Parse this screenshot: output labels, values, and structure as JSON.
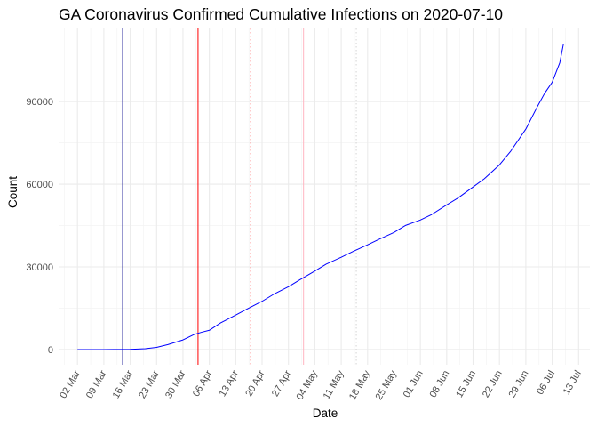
{
  "chart_data": {
    "type": "line",
    "title": "GA Coronavirus Confirmed Cumulative Infections on 2020-07-10",
    "xlabel": "Date",
    "ylabel": "Count",
    "x_tick_labels": [
      "02 Mar",
      "09 Mar",
      "16 Mar",
      "23 Mar",
      "30 Mar",
      "06 Apr",
      "13 Apr",
      "20 Apr",
      "27 Apr",
      "04 May",
      "11 May",
      "18 May",
      "25 May",
      "01 Jun",
      "08 Jun",
      "15 Jun",
      "22 Jun",
      "29 Jun",
      "06 Jul",
      "13 Jul"
    ],
    "x_tick_dates": [
      "2020-03-02",
      "2020-03-09",
      "2020-03-16",
      "2020-03-23",
      "2020-03-30",
      "2020-04-06",
      "2020-04-13",
      "2020-04-20",
      "2020-04-27",
      "2020-05-04",
      "2020-05-11",
      "2020-05-18",
      "2020-05-25",
      "2020-06-01",
      "2020-06-08",
      "2020-06-15",
      "2020-06-22",
      "2020-06-29",
      "2020-07-06",
      "2020-07-13"
    ],
    "y_tick_labels": [
      "0",
      "30000",
      "60000",
      "90000"
    ],
    "y_ticks": [
      0,
      30000,
      60000,
      90000
    ],
    "xlim": [
      "2020-02-26",
      "2020-07-16"
    ],
    "ylim": [
      -5500,
      116500
    ],
    "grid": true,
    "reference_lines": [
      {
        "date": "2020-03-14",
        "color": "#00008b",
        "style": "solid"
      },
      {
        "date": "2020-04-03",
        "color": "#ff0000",
        "style": "solid"
      },
      {
        "date": "2020-04-17",
        "color": "#ff0000",
        "style": "dotted"
      },
      {
        "date": "2020-05-01",
        "color": "#ffb6c1",
        "style": "solid"
      },
      {
        "date": "2020-05-15",
        "color": "#d3d3d3",
        "style": "dotted"
      }
    ],
    "series": [
      {
        "color": "#0000ff",
        "x": [
          "2020-03-02",
          "2020-03-09",
          "2020-03-16",
          "2020-03-20",
          "2020-03-23",
          "2020-03-26",
          "2020-03-30",
          "2020-04-02",
          "2020-04-04",
          "2020-04-06",
          "2020-04-09",
          "2020-04-13",
          "2020-04-16",
          "2020-04-20",
          "2020-04-23",
          "2020-04-27",
          "2020-04-30",
          "2020-05-04",
          "2020-05-07",
          "2020-05-11",
          "2020-05-14",
          "2020-05-18",
          "2020-05-21",
          "2020-05-25",
          "2020-05-28",
          "2020-06-01",
          "2020-06-04",
          "2020-06-08",
          "2020-06-11",
          "2020-06-15",
          "2020-06-18",
          "2020-06-22",
          "2020-06-25",
          "2020-06-29",
          "2020-07-02",
          "2020-07-04",
          "2020-07-06",
          "2020-07-08",
          "2020-07-09"
        ],
        "y": [
          0,
          0,
          50,
          300,
          800,
          1800,
          3500,
          5500,
          6300,
          7000,
          9700,
          12500,
          14700,
          17500,
          20000,
          22800,
          25300,
          28500,
          31000,
          33500,
          35500,
          38000,
          40000,
          42500,
          45000,
          47000,
          49000,
          52500,
          55000,
          59000,
          62000,
          67000,
          72000,
          80000,
          88000,
          93000,
          97000,
          104000,
          111000
        ]
      }
    ]
  }
}
